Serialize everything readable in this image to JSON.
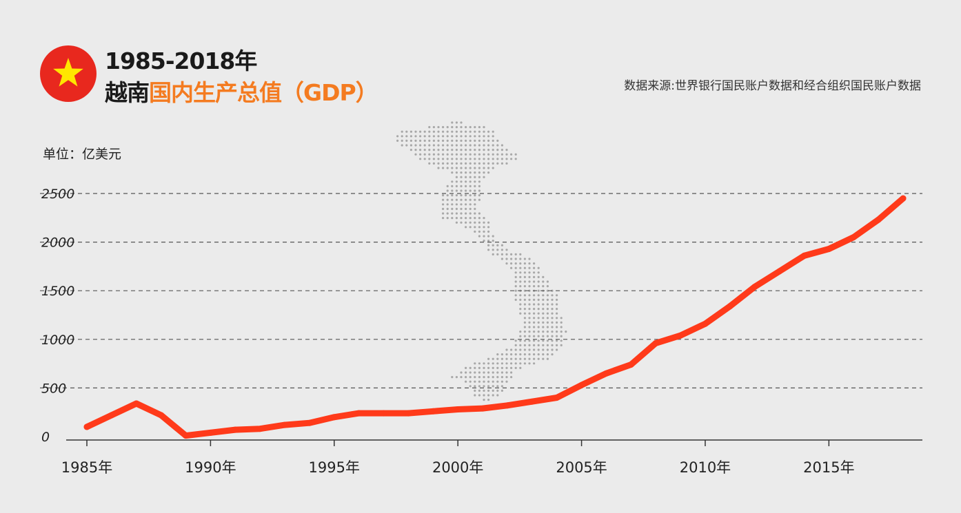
{
  "header": {
    "title_line1": "1985-2018年",
    "title_line2_dark": "越南",
    "title_line2_orange": "国内生产总值（GDP）",
    "source": "数据来源:世界银行国民账户数据和经合组织国民账户数据",
    "flag_icon": "vietnam-flag-star-icon"
  },
  "unit_label": "单位：亿美元",
  "colors": {
    "line": "#ff3a1a",
    "flag_red": "#e8281e",
    "star": "#ffe600",
    "accent": "#f47b20",
    "map_dots": "#a8a8a8"
  },
  "chart_data": {
    "type": "line",
    "title": "1985-2018年 越南国内生产总值（GDP）",
    "ylabel": "单位：亿美元",
    "xlabel": "",
    "ylim": [
      0,
      2500
    ],
    "xlim": [
      1985,
      2018
    ],
    "yticks": [
      0,
      500,
      1000,
      1500,
      2000,
      2500
    ],
    "xticks": [
      1985,
      1990,
      1995,
      2000,
      2005,
      2010,
      2015
    ],
    "xtick_labels": [
      "1985年",
      "1990年",
      "1995年",
      "2000年",
      "2005年",
      "2010年",
      "2015年"
    ],
    "grid": true,
    "series": [
      {
        "x": [
          1985,
          1986,
          1987,
          1988,
          1989,
          1990,
          1991,
          1992,
          1993,
          1994,
          1995,
          1996,
          1997,
          1998,
          1999,
          2000,
          2001,
          2002,
          2003,
          2004,
          2005,
          2006,
          2007,
          2008,
          2009,
          2010,
          2011,
          2012,
          2013,
          2014,
          2015,
          2016,
          2017,
          2018
        ],
        "values": [
          100,
          220,
          340,
          220,
          10,
          40,
          70,
          80,
          120,
          140,
          200,
          240,
          240,
          240,
          260,
          280,
          290,
          320,
          360,
          400,
          530,
          650,
          740,
          960,
          1040,
          1160,
          1340,
          1540,
          1700,
          1860,
          1930,
          2050,
          2230,
          2450
        ]
      }
    ]
  }
}
